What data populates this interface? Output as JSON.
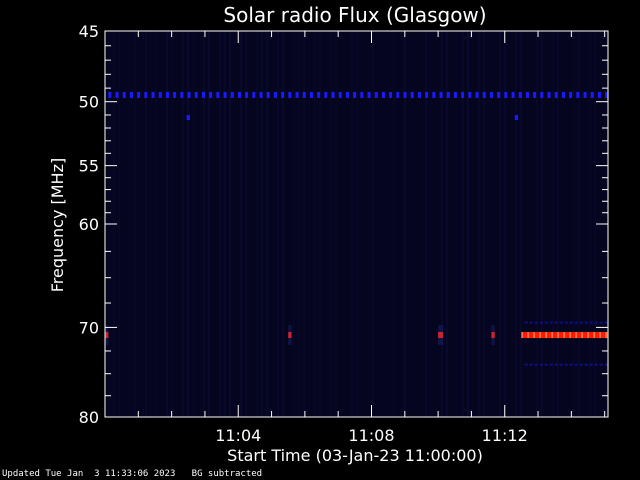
{
  "chart_data": {
    "type": "heatmap",
    "title": "Solar radio Flux (Glasgow)",
    "xlabel": "Start Time (03-Jan-23 11:00:00)",
    "ylabel": "Frequency [MHz]",
    "x_ticks": [
      "11:04",
      "11:08",
      "11:12"
    ],
    "x_tick_minutes": [
      4,
      8,
      12
    ],
    "xlim_minutes": [
      0,
      15.1
    ],
    "y_ticks": [
      45,
      50,
      55,
      60,
      70,
      80
    ],
    "ylim": [
      45,
      80
    ],
    "y_scale": "log",
    "colors": {
      "background": "#000000",
      "field": "#05051f",
      "blue": "#1a1aff",
      "red": "#ff1a00"
    },
    "features": [
      {
        "name": "interference line",
        "freq": 49.5,
        "minute_start": 0.1,
        "minute_end": 15.1,
        "color": "blue"
      },
      {
        "name": "spot",
        "freq": 51.2,
        "minute_start": 2.45,
        "minute_end": 2.55,
        "color": "blue"
      },
      {
        "name": "spot",
        "freq": 51.2,
        "minute_start": 12.3,
        "minute_end": 12.4,
        "color": "blue"
      },
      {
        "name": "interference line",
        "freq": 70.8,
        "minute_start": 12.5,
        "minute_end": 15.1,
        "color": "red"
      },
      {
        "name": "burst",
        "freq": 70.8,
        "minute_start": 0.0,
        "minute_end": 0.1,
        "color": "red"
      },
      {
        "name": "burst",
        "freq": 70.8,
        "minute_start": 5.5,
        "minute_end": 5.6,
        "color": "red"
      },
      {
        "name": "burst",
        "freq": 70.8,
        "minute_start": 10.0,
        "minute_end": 10.15,
        "color": "red"
      },
      {
        "name": "burst",
        "freq": 70.8,
        "minute_start": 11.6,
        "minute_end": 11.7,
        "color": "red"
      },
      {
        "name": "faint band",
        "freq": 69.5,
        "minute_start": 12.6,
        "minute_end": 15.1,
        "color": "blue"
      },
      {
        "name": "faint band",
        "freq": 74.0,
        "minute_start": 12.6,
        "minute_end": 15.1,
        "color": "blue"
      }
    ]
  },
  "footer": {
    "updated": "Updated Tue Jan  3 11:33:06 2023",
    "bg_note": "BG subtracted"
  }
}
